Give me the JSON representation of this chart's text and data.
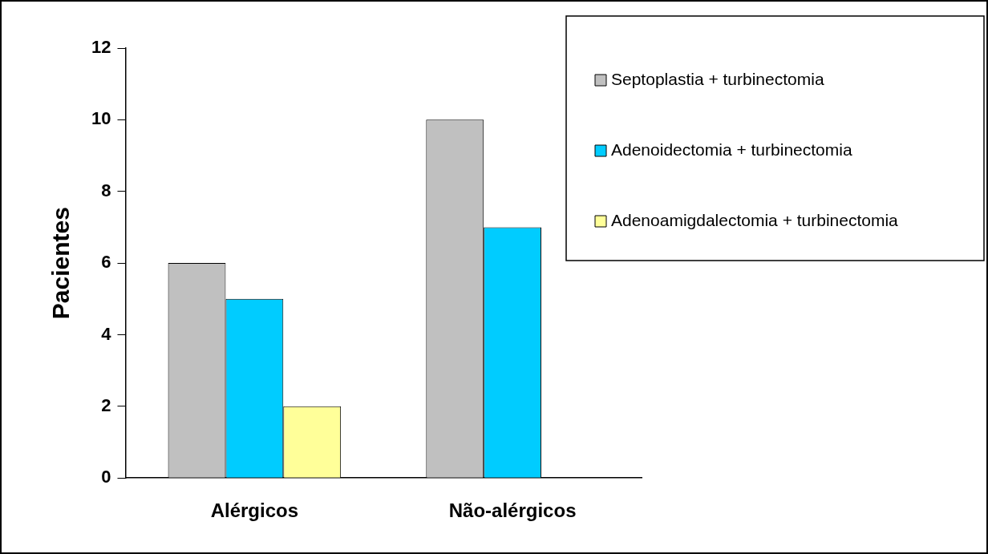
{
  "chart_data": {
    "type": "bar",
    "ylabel": "Pacientes",
    "categories": [
      "Alérgicos",
      "Não-alérgicos"
    ],
    "series": [
      {
        "name": "Septoplastia + turbinectomia",
        "color": "#c0c0c0",
        "values": [
          6,
          10
        ]
      },
      {
        "name": "Adenoidectomia + turbinectomia",
        "color": "#00ccff",
        "values": [
          5,
          7
        ]
      },
      {
        "name": "Adenoamigdalectomia + turbinectomia",
        "color": "#ffff99",
        "values": [
          2,
          null
        ]
      }
    ],
    "ylim": [
      0,
      12
    ],
    "yticks": [
      0,
      2,
      4,
      6,
      8,
      10,
      12
    ],
    "grid": false,
    "legend": "top right"
  }
}
